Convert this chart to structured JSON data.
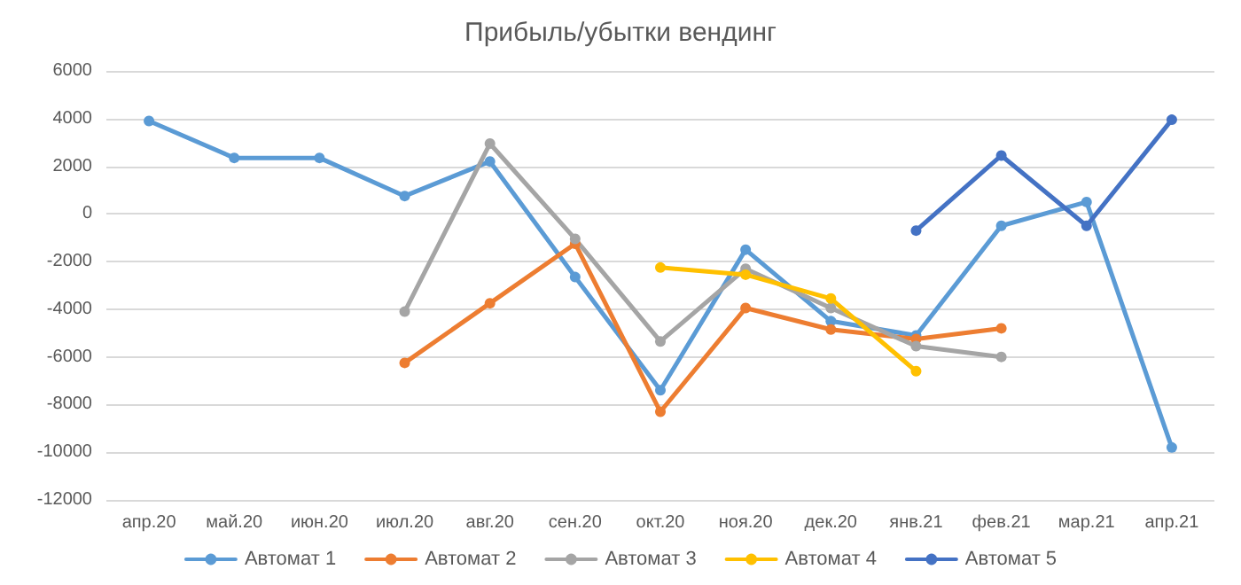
{
  "chart_data": {
    "type": "line",
    "title": "Прибыль/убытки вендинг",
    "categories": [
      "апр.20",
      "май.20",
      "июн.20",
      "июл.20",
      "авг.20",
      "сен.20",
      "окт.20",
      "ноя.20",
      "дек.20",
      "янв.21",
      "фев.21",
      "мар.21",
      "апр.21"
    ],
    "series": [
      {
        "name": "Автомат 1",
        "color": "#5b9bd5",
        "values": [
          3900,
          2350,
          2350,
          750,
          2200,
          -2650,
          -7400,
          -1500,
          -4500,
          -5100,
          -500,
          500,
          -9800
        ]
      },
      {
        "name": "Автомат 2",
        "color": "#ed7d31",
        "values": [
          null,
          null,
          null,
          -6250,
          -3750,
          -1250,
          -8300,
          -3950,
          -4850,
          -5250,
          -4800,
          null,
          null
        ]
      },
      {
        "name": "Автомат 3",
        "color": "#a5a5a5",
        "values": [
          null,
          null,
          null,
          -4100,
          2950,
          -1050,
          -5350,
          -2300,
          -3950,
          -5550,
          -6000,
          null,
          null
        ]
      },
      {
        "name": "Автомат 4",
        "color": "#ffc000",
        "values": [
          null,
          null,
          null,
          null,
          null,
          null,
          -2250,
          -2550,
          -3550,
          -6600,
          null,
          null,
          null
        ]
      },
      {
        "name": "Автомат 5",
        "color": "#4472c4",
        "values": [
          null,
          null,
          null,
          null,
          null,
          null,
          null,
          null,
          null,
          -700,
          2450,
          -500,
          3950
        ]
      }
    ],
    "ylim": [
      -12000,
      6000
    ],
    "yticks": [
      -12000,
      -10000,
      -8000,
      -6000,
      -4000,
      -2000,
      0,
      2000,
      4000,
      6000
    ],
    "grid": "y",
    "legend": "bottom",
    "marker": "circle",
    "line_style": "solid"
  }
}
